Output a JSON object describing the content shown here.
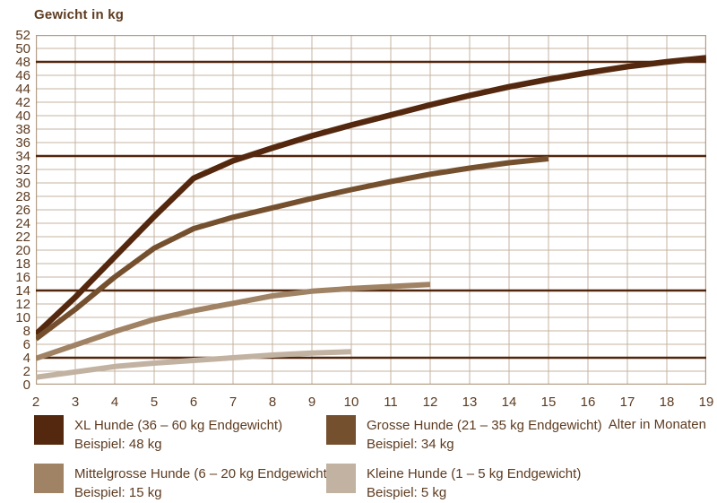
{
  "title": "Gewicht in kg",
  "x_axis_title": "Alter in Monaten",
  "colors": {
    "text": "#5d3b20",
    "grid": "#c6b3a0",
    "border": "#b39c85",
    "reference_line": "#50260c",
    "background": "#ffffff"
  },
  "chart_data": {
    "type": "line",
    "title": "Gewicht in kg",
    "xlabel": "Alter in Monaten",
    "ylabel": "Gewicht in kg",
    "xlim": [
      2,
      19
    ],
    "ylim": [
      0,
      52
    ],
    "xticks": [
      2,
      3,
      4,
      5,
      6,
      7,
      8,
      9,
      10,
      11,
      12,
      13,
      14,
      15,
      16,
      17,
      18,
      19
    ],
    "yticks": [
      0,
      2,
      4,
      6,
      8,
      10,
      12,
      14,
      16,
      18,
      20,
      22,
      24,
      26,
      28,
      30,
      32,
      34,
      36,
      38,
      40,
      42,
      44,
      46,
      48,
      50,
      52
    ],
    "grid": true,
    "legend_position": "bottom",
    "reference_lines_kg": [
      48,
      34,
      14,
      4
    ],
    "series": [
      {
        "name": "XL Hunde (36 – 60 kg Endgewicht)",
        "example": "Beispiel: 48 kg",
        "color": "#54280e",
        "stroke_width": 6.5,
        "points": [
          [
            2,
            7.5
          ],
          [
            3,
            13
          ],
          [
            4,
            19
          ],
          [
            5,
            25
          ],
          [
            6,
            30.7
          ],
          [
            7,
            33.3
          ],
          [
            8,
            35.2
          ],
          [
            9,
            37
          ],
          [
            10,
            38.6
          ],
          [
            11,
            40.1
          ],
          [
            12,
            41.6
          ],
          [
            13,
            43
          ],
          [
            14,
            44.3
          ],
          [
            15,
            45.4
          ],
          [
            16,
            46.4
          ],
          [
            17,
            47.3
          ],
          [
            18,
            48
          ],
          [
            19,
            48.6
          ]
        ]
      },
      {
        "name": "Grosse Hunde (21 – 35 kg Endgewicht)",
        "example": "Beispiel: 34 kg",
        "color": "#75502f",
        "stroke_width": 6,
        "points": [
          [
            2,
            6.8
          ],
          [
            3,
            11.2
          ],
          [
            4,
            16
          ],
          [
            5,
            20.3
          ],
          [
            6,
            23.2
          ],
          [
            7,
            24.9
          ],
          [
            8,
            26.3
          ],
          [
            9,
            27.7
          ],
          [
            10,
            29
          ],
          [
            11,
            30.2
          ],
          [
            12,
            31.3
          ],
          [
            13,
            32.2
          ],
          [
            14,
            33
          ],
          [
            15,
            33.6
          ]
        ]
      },
      {
        "name": "Mittelgrosse Hunde (6 – 20 kg Endgewicht)",
        "example": "Beispiel: 15 kg",
        "color": "#a08264",
        "stroke_width": 6,
        "points": [
          [
            2,
            3.9
          ],
          [
            3,
            5.9
          ],
          [
            4,
            7.9
          ],
          [
            5,
            9.7
          ],
          [
            6,
            11
          ],
          [
            7,
            12.1
          ],
          [
            8,
            13.2
          ],
          [
            9,
            13.9
          ],
          [
            10,
            14.3
          ],
          [
            11,
            14.6
          ],
          [
            12,
            14.9
          ]
        ]
      },
      {
        "name": "Kleine Hunde (1 – 5 kg Endgewicht)",
        "example": "Beispiel: 5 kg",
        "color": "#c2b2a2",
        "stroke_width": 6,
        "points": [
          [
            2,
            1.1
          ],
          [
            3,
            1.9
          ],
          [
            4,
            2.7
          ],
          [
            5,
            3.2
          ],
          [
            6,
            3.6
          ],
          [
            7,
            4
          ],
          [
            8,
            4.4
          ],
          [
            9,
            4.7
          ],
          [
            10,
            4.9
          ]
        ]
      }
    ]
  },
  "legend": {
    "items": [
      {
        "label": "XL Hunde (36 – 60 kg Endgewicht)",
        "example": "Beispiel: 48 kg",
        "color": "#54280e"
      },
      {
        "label": "Grosse Hunde (21 – 35 kg Endgewicht)",
        "example": "Beispiel: 34 kg",
        "color": "#75502f"
      },
      {
        "label": "Mittelgrosse Hunde (6 – 20 kg Endgewicht)",
        "example": "Beispiel: 15 kg",
        "color": "#a08264"
      },
      {
        "label": "Kleine Hunde (1 – 5 kg Endgewicht)",
        "example": "Beispiel: 5 kg",
        "color": "#c2b2a2"
      }
    ]
  }
}
